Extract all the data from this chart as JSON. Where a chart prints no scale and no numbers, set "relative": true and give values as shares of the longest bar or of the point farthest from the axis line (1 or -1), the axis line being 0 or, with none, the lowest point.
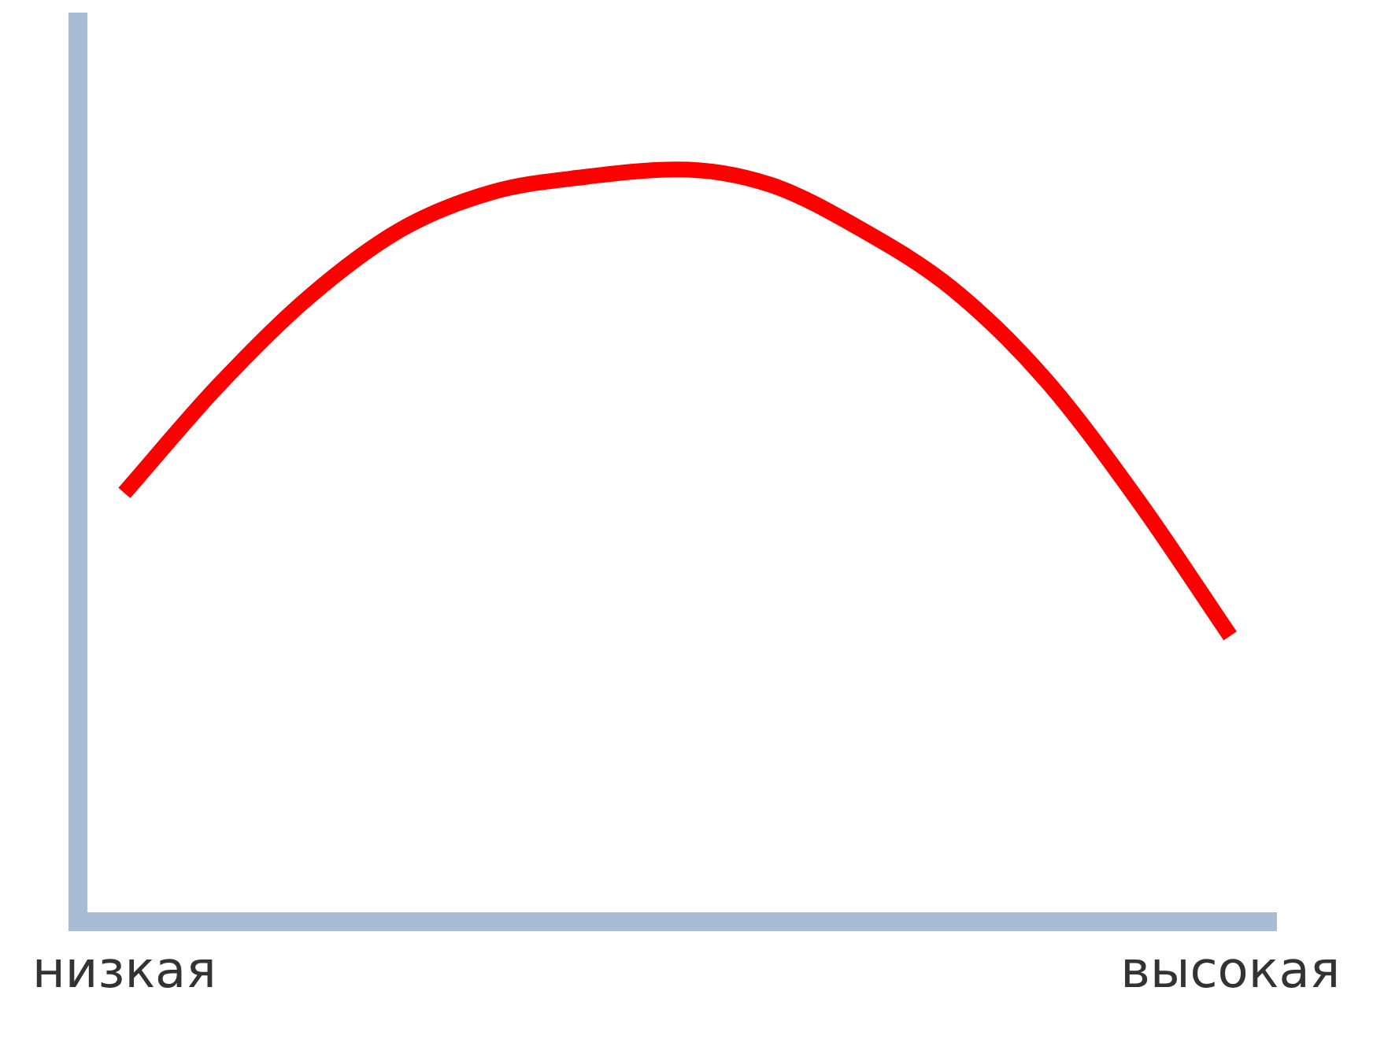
{
  "chart_data": {
    "type": "line",
    "relative": true,
    "categories": [
      "низкая",
      null,
      null,
      null,
      null,
      null,
      null,
      null,
      null,
      null,
      null,
      null,
      "высокая"
    ],
    "series": [
      {
        "color": "#ff0000",
        "values": [
          0.57,
          0.71,
          0.83,
          0.92,
          0.97,
          0.99,
          1,
          0.98,
          0.92,
          0.84,
          0.72,
          0.56,
          0.38
        ]
      }
    ],
    "grid": false,
    "legend": false,
    "marker": "none",
    "line_style": "solid"
  }
}
